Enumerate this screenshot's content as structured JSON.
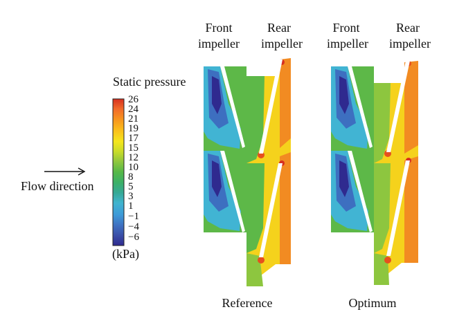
{
  "legend": {
    "title": "Static pressure",
    "unit": "(kPa)",
    "ticks": [
      "26",
      "24",
      "21",
      "19",
      "17",
      "15",
      "12",
      "10",
      "8",
      "5",
      "3",
      "1",
      "−1",
      "−4",
      "−6"
    ],
    "colors": [
      "#d7301f",
      "#f26b2a",
      "#f7951e",
      "#fbbd1b",
      "#f5e61c",
      "#c8dc2a",
      "#8dc63f",
      "#55b848",
      "#3bb067",
      "#35a996",
      "#40b4cf",
      "#3d9ad8",
      "#3f72c2",
      "#3a4fa8",
      "#2f2a8f"
    ]
  },
  "flow_direction": "Flow direction",
  "panels": [
    {
      "id": "reference",
      "caption": "Reference",
      "front_label": [
        "Front",
        "impeller"
      ],
      "rear_label": [
        "Rear",
        "impeller"
      ]
    },
    {
      "id": "optimum",
      "caption": "Optimum",
      "front_label": [
        "Front",
        "impeller"
      ],
      "rear_label": [
        "Rear",
        "impeller"
      ]
    }
  ]
}
